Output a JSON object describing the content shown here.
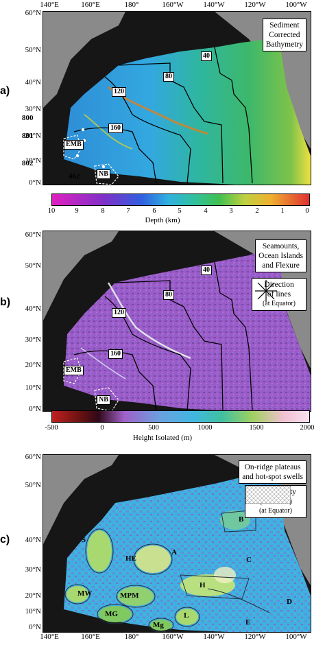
{
  "lat_labels": [
    "60°N",
    "50°N",
    "40°N",
    "30°N",
    "20°N",
    "10°N",
    "0°N"
  ],
  "lon_labels": [
    "140°E",
    "160°E",
    "180°",
    "160°W",
    "140°W",
    "120°W",
    "100°W"
  ],
  "panels": [
    {
      "letter": "a)",
      "info_lines": [
        "Sediment",
        "Corrected",
        "Bathymetry"
      ],
      "contours": [
        "40",
        "80",
        "120",
        "160"
      ],
      "sites": [
        "800",
        "801",
        "802",
        "462"
      ],
      "areas": [
        "EMB",
        "NB"
      ],
      "colorbar": {
        "ticks": [
          "10",
          "9",
          "8",
          "7",
          "6",
          "5",
          "4",
          "3",
          "2",
          "1",
          "0"
        ],
        "label": "Depth (km)"
      }
    },
    {
      "letter": "b)",
      "info_lines": [
        "Seamounts,",
        "Ocean Islands",
        "and Flexure"
      ],
      "direction_title": [
        "Direction",
        "of lines"
      ],
      "direction_note": "(at Equator)",
      "contours": [
        "40",
        "80",
        "120",
        "160"
      ],
      "areas": [
        "EMB",
        "NB"
      ],
      "colorbar": {
        "ticks": [
          "-500",
          "0",
          "500",
          "1000",
          "1500",
          "2000"
        ],
        "label": "Height Isolated (m)"
      }
    },
    {
      "letter": "c)",
      "info_lines": [
        "On-ridge plateaus",
        "and hot-spot swells"
      ],
      "density_title": [
        "Line Density",
        "(x4 zoom)"
      ],
      "density_note": "(at Equator)",
      "regions": [
        "S",
        "HE",
        "A",
        "B",
        "H",
        "C",
        "MW",
        "MPM",
        "D",
        "MG",
        "L",
        "Mg",
        "E"
      ]
    }
  ]
}
